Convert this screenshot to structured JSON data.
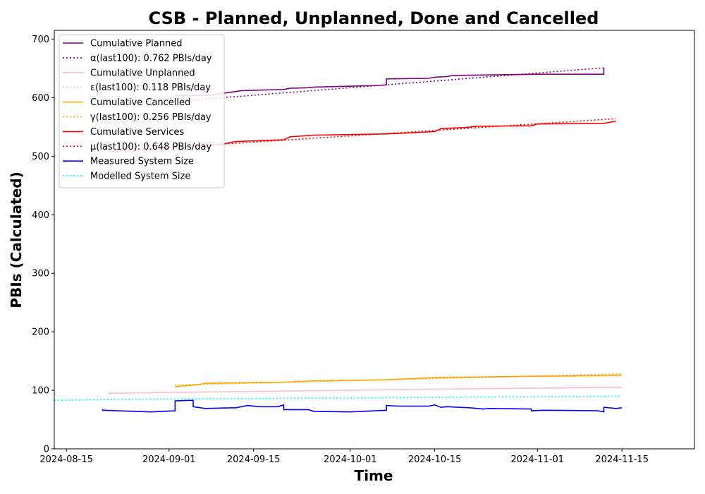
{
  "chart_data": {
    "type": "line",
    "title": "CSB - Planned, Unplanned, Done  and Cancelled",
    "xlabel": "Time",
    "ylabel": "PBIs (Calculated)",
    "xlim": [
      "2024-08-13",
      "2024-11-27"
    ],
    "ylim": [
      0,
      715
    ],
    "x_ticks": [
      "2024-08-15",
      "2024-09-01",
      "2024-09-15",
      "2024-10-01",
      "2024-10-15",
      "2024-11-01",
      "2024-11-15"
    ],
    "y_ticks": [
      0,
      100,
      200,
      300,
      400,
      500,
      600,
      700
    ],
    "grid": false,
    "legend_position": "top-left",
    "series": [
      {
        "name": "Cumulative Planned",
        "color": "#800080",
        "style": "solid",
        "points": [
          [
            "2024-09-02",
            604
          ],
          [
            "2024-09-08",
            604
          ],
          [
            "2024-09-09",
            606
          ],
          [
            "2024-09-11",
            609
          ],
          [
            "2024-09-13",
            612
          ],
          [
            "2024-09-20",
            614
          ],
          [
            "2024-09-21",
            616
          ],
          [
            "2024-09-24",
            617
          ],
          [
            "2024-09-25",
            618
          ],
          [
            "2024-10-06",
            621
          ],
          [
            "2024-10-07",
            622
          ],
          [
            "2024-10-07",
            632
          ],
          [
            "2024-10-14",
            633
          ],
          [
            "2024-10-15",
            635
          ],
          [
            "2024-10-17",
            636
          ],
          [
            "2024-10-18",
            638
          ],
          [
            "2024-11-01",
            640
          ],
          [
            "2024-11-12",
            640
          ],
          [
            "2024-11-12",
            651
          ]
        ]
      },
      {
        "name": "α(last100): 0.762 PBIs/day",
        "color": "#800080",
        "style": "dotted",
        "points": [
          [
            "2024-08-31",
            592
          ],
          [
            "2024-11-12",
            651
          ]
        ]
      },
      {
        "name": "Cumulative Unplanned",
        "color": "#ffc0cb",
        "style": "solid",
        "points": [
          [
            "2024-08-22",
            95
          ],
          [
            "2024-09-15",
            98
          ],
          [
            "2024-10-15",
            102
          ],
          [
            "2024-11-15",
            105
          ]
        ]
      },
      {
        "name": "ε(last100): 0.118 PBIs/day",
        "color": "#ffc0cb",
        "style": "dotted",
        "points": [
          [
            "2024-08-22",
            95
          ],
          [
            "2024-11-15",
            106
          ]
        ]
      },
      {
        "name": "Cumulative Cancelled",
        "color": "#ffa500",
        "style": "solid",
        "points": [
          [
            "2024-09-02",
            106
          ],
          [
            "2024-09-04",
            108
          ],
          [
            "2024-09-06",
            110
          ],
          [
            "2024-09-07",
            112
          ],
          [
            "2024-09-20",
            114
          ],
          [
            "2024-09-25",
            116
          ],
          [
            "2024-10-07",
            118
          ],
          [
            "2024-10-16",
            122
          ],
          [
            "2024-11-01",
            124
          ],
          [
            "2024-11-13",
            125
          ],
          [
            "2024-11-15",
            126
          ]
        ]
      },
      {
        "name": "γ(last100): 0.256 PBIs/day",
        "color": "#ffa500",
        "style": "dotted",
        "points": [
          [
            "2024-09-02",
            109
          ],
          [
            "2024-11-15",
            128
          ]
        ]
      },
      {
        "name": "Cumulative Services",
        "color": "#ff0000",
        "style": "solid",
        "points": [
          [
            "2024-08-22",
            508
          ],
          [
            "2024-09-07",
            518
          ],
          [
            "2024-09-10",
            521
          ],
          [
            "2024-09-12",
            525
          ],
          [
            "2024-09-20",
            528
          ],
          [
            "2024-09-21",
            533
          ],
          [
            "2024-09-25",
            536
          ],
          [
            "2024-10-07",
            538
          ],
          [
            "2024-10-15",
            542
          ],
          [
            "2024-10-16",
            547
          ],
          [
            "2024-10-20",
            549
          ],
          [
            "2024-10-22",
            551
          ],
          [
            "2024-10-31",
            552
          ],
          [
            "2024-11-01",
            555
          ],
          [
            "2024-11-12",
            556
          ],
          [
            "2024-11-14",
            560
          ]
        ]
      },
      {
        "name": "μ(last100): 0.648 PBIs/day",
        "color": "#ff0000",
        "style": "dotted",
        "points": [
          [
            "2024-08-22",
            508
          ],
          [
            "2024-11-14",
            564
          ]
        ]
      },
      {
        "name": "Measured System Size",
        "color": "#0000ff",
        "style": "solid",
        "points": [
          [
            "2024-08-21",
            68
          ],
          [
            "2024-08-21",
            66
          ],
          [
            "2024-08-29",
            63
          ],
          [
            "2024-09-02",
            65
          ],
          [
            "2024-09-02",
            82
          ],
          [
            "2024-09-05",
            83
          ],
          [
            "2024-09-05",
            72
          ],
          [
            "2024-09-07",
            69
          ],
          [
            "2024-09-11",
            70
          ],
          [
            "2024-09-12",
            70
          ],
          [
            "2024-09-14",
            74
          ],
          [
            "2024-09-16",
            72
          ],
          [
            "2024-09-19",
            72
          ],
          [
            "2024-09-20",
            75
          ],
          [
            "2024-09-20",
            67
          ],
          [
            "2024-09-24",
            67
          ],
          [
            "2024-09-25",
            64
          ],
          [
            "2024-10-01",
            63
          ],
          [
            "2024-10-07",
            66
          ],
          [
            "2024-10-07",
            74
          ],
          [
            "2024-10-09",
            73
          ],
          [
            "2024-10-14",
            73
          ],
          [
            "2024-10-15",
            75
          ],
          [
            "2024-10-16",
            71
          ],
          [
            "2024-10-17",
            72
          ],
          [
            "2024-10-21",
            70
          ],
          [
            "2024-10-23",
            68
          ],
          [
            "2024-10-24",
            69
          ],
          [
            "2024-10-31",
            68
          ],
          [
            "2024-10-31",
            65
          ],
          [
            "2024-11-02",
            66
          ],
          [
            "2024-11-11",
            65
          ],
          [
            "2024-11-12",
            63
          ],
          [
            "2024-11-12",
            71
          ],
          [
            "2024-11-14",
            69
          ],
          [
            "2024-11-15",
            70
          ]
        ]
      },
      {
        "name": "Modelled System Size",
        "color": "#00ffff",
        "style": "dotted",
        "points": [
          [
            "2024-08-13",
            83
          ],
          [
            "2024-08-20",
            84
          ],
          [
            "2024-09-01",
            85
          ],
          [
            "2024-09-15",
            86
          ],
          [
            "2024-10-01",
            87
          ],
          [
            "2024-10-15",
            88
          ],
          [
            "2024-11-01",
            89
          ],
          [
            "2024-11-15",
            90
          ]
        ]
      }
    ]
  }
}
